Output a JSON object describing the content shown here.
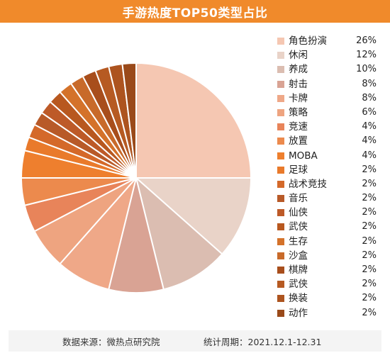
{
  "header": {
    "title": "手游热度TOP50类型占比"
  },
  "chart_data": {
    "type": "pie",
    "title": "手游热度TOP50类型占比",
    "legend_position": "right",
    "slices": [
      {
        "label": "角色扮演",
        "value": 26,
        "display": "26%",
        "color": "#f5c7b2"
      },
      {
        "label": "休闲",
        "value": 12,
        "display": "12%",
        "color": "#e9d3c8"
      },
      {
        "label": "养成",
        "value": 10,
        "display": "10%",
        "color": "#dbbdb1"
      },
      {
        "label": "射击",
        "value": 8,
        "display": "8%",
        "color": "#d9a394"
      },
      {
        "label": "卡牌",
        "value": 8,
        "display": "8%",
        "color": "#efa888"
      },
      {
        "label": "策略",
        "value": 6,
        "display": "6%",
        "color": "#eea480"
      },
      {
        "label": "竞速",
        "value": 4,
        "display": "4%",
        "color": "#e8845a"
      },
      {
        "label": "放置",
        "value": 4,
        "display": "4%",
        "color": "#ec8a4d"
      },
      {
        "label": "MOBA",
        "value": 4,
        "display": "4%",
        "color": "#ee7f2e"
      },
      {
        "label": "足球",
        "value": 2,
        "display": "2%",
        "color": "#e97a2b"
      },
      {
        "label": "战术竞技",
        "value": 2,
        "display": "2%",
        "color": "#d4692a"
      },
      {
        "label": "音乐",
        "value": 2,
        "display": "2%",
        "color": "#b85a28"
      },
      {
        "label": "仙侠",
        "value": 2,
        "display": "2%",
        "color": "#bd5a28"
      },
      {
        "label": "武侠",
        "value": 2,
        "display": "2%",
        "color": "#b8581f"
      },
      {
        "label": "生存",
        "value": 2,
        "display": "2%",
        "color": "#d4722a"
      },
      {
        "label": "沙盒",
        "value": 2,
        "display": "2%",
        "color": "#c86a2a"
      },
      {
        "label": "棋牌",
        "value": 2,
        "display": "2%",
        "color": "#a84e1c"
      },
      {
        "label": "武侠",
        "value": 2,
        "display": "2%",
        "color": "#b65a22"
      },
      {
        "label": "换装",
        "value": 2,
        "display": "2%",
        "color": "#ad541f"
      },
      {
        "label": "动作",
        "value": 2,
        "display": "2%",
        "color": "#9a4a1a"
      }
    ]
  },
  "footer": {
    "source": "数据来源：微热点研究院",
    "period": "统计周期：2021.12.1-12.31"
  }
}
